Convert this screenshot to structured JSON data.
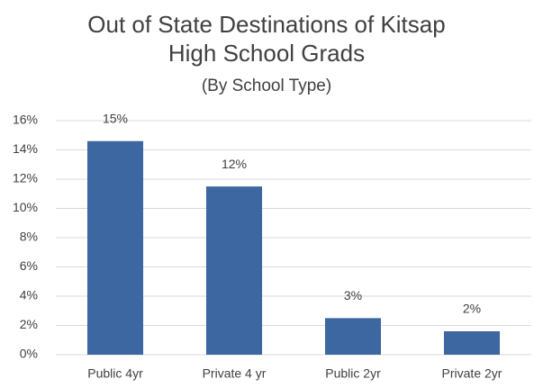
{
  "chart_data": {
    "type": "bar",
    "title": [
      "Out of State Destinations of Kitsap",
      "High School Grads"
    ],
    "subtitle": "(By School Type)",
    "categories": [
      "Public 4yr",
      "Private 4 yr",
      "Public 2yr",
      "Private 2yr"
    ],
    "values": [
      14.6,
      11.5,
      2.5,
      1.6
    ],
    "value_labels": [
      "15%",
      "12%",
      "3%",
      "2%"
    ],
    "color": "#3c67a1",
    "ylim": [
      0,
      16
    ],
    "yticks": [
      {
        "value": 0,
        "label": "0%"
      },
      {
        "value": 2,
        "label": "2%"
      },
      {
        "value": 4,
        "label": "4%"
      },
      {
        "value": 6,
        "label": "6%"
      },
      {
        "value": 8,
        "label": "8%"
      },
      {
        "value": 10,
        "label": "10%"
      },
      {
        "value": 12,
        "label": "12%"
      },
      {
        "value": 14,
        "label": "14%"
      },
      {
        "value": 16,
        "label": "16%"
      }
    ],
    "grid": true
  }
}
